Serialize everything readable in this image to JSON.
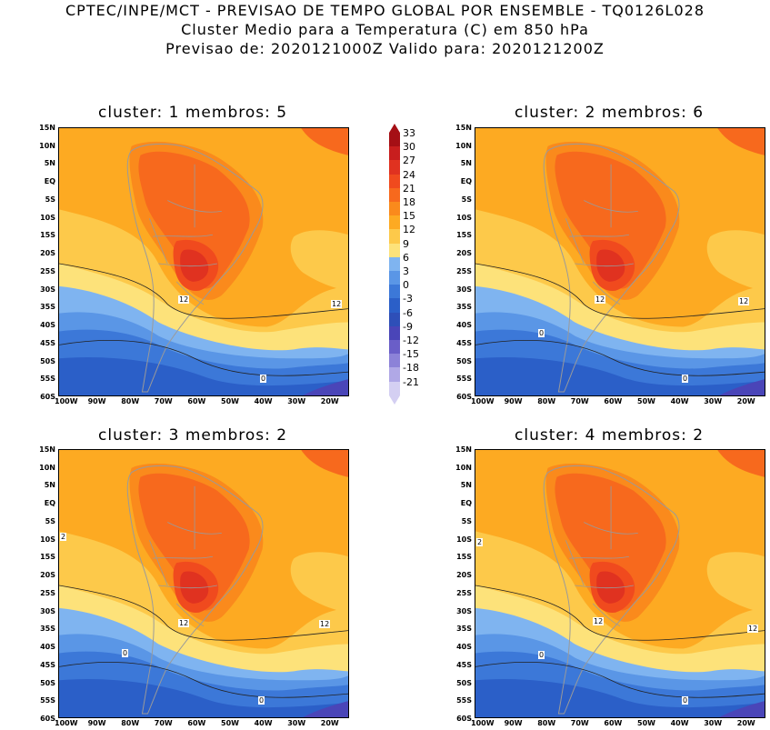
{
  "header": {
    "line1": "CPTEC/INPE/MCT - PREVISAO DE TEMPO GLOBAL POR ENSEMBLE - TQ0126L028",
    "line2": "Cluster Medio para a Temperatura (C) em 850 hPa",
    "line3": "Previsao de: 2020121000Z   Valido para: 2020121200Z"
  },
  "panels": [
    {
      "title": "cluster: 1   membros: 5",
      "labels": [
        "12",
        "12",
        "0"
      ]
    },
    {
      "title": "cluster: 2   membros: 6",
      "labels": [
        "12",
        "12",
        "0",
        "0"
      ]
    },
    {
      "title": "cluster: 3   membros: 2",
      "labels": [
        "2",
        "12",
        "12",
        "0",
        "0"
      ]
    },
    {
      "title": "cluster: 4   membros: 2",
      "labels": [
        "2",
        "12",
        "12",
        "0",
        "0"
      ]
    }
  ],
  "lat_labels": [
    "15N",
    "10N",
    "5N",
    "EQ",
    "5S",
    "10S",
    "15S",
    "20S",
    "25S",
    "30S",
    "35S",
    "40S",
    "45S",
    "50S",
    "55S",
    "60S"
  ],
  "lon_labels": [
    "100W",
    "90W",
    "80W",
    "70W",
    "60W",
    "50W",
    "40W",
    "30W",
    "20W"
  ],
  "colorbar": {
    "labels": [
      "33",
      "30",
      "27",
      "24",
      "21",
      "18",
      "15",
      "12",
      "9",
      "6",
      "3",
      "0",
      "-3",
      "-6",
      "-9",
      "-12",
      "-15",
      "-18",
      "-21"
    ],
    "colors": [
      "#a50f15",
      "#c81e1e",
      "#e03220",
      "#f04a1e",
      "#f7691d",
      "#fa8a1c",
      "#fdaa22",
      "#fdc94a",
      "#fde27a",
      "#7fb4f0",
      "#5a96e6",
      "#3c78d8",
      "#2b5fc8",
      "#2e4fb8",
      "#4a45b8",
      "#6a5ec8",
      "#8c82d8",
      "#b0a8e6",
      "#d4cff2"
    ]
  }
}
